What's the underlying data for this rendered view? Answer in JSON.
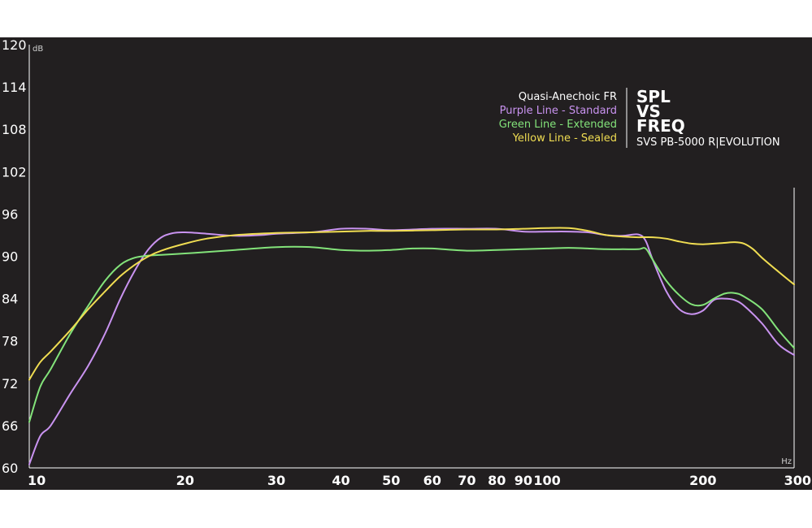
{
  "chart_data": {
    "type": "line",
    "y_unit": "dB",
    "x_unit": "Hz",
    "x_scale": "log",
    "xlim": [
      10,
      300
    ],
    "ylim": [
      60,
      120
    ],
    "y_ticks": [
      "120",
      "114",
      "108",
      "102",
      "96",
      "90",
      "84",
      "78",
      "72",
      "66",
      "60"
    ],
    "x_ticks": [
      {
        "value": 10,
        "label": "10"
      },
      {
        "value": 20,
        "label": "20"
      },
      {
        "value": 30,
        "label": "30"
      },
      {
        "value": 40,
        "label": "40"
      },
      {
        "value": 50,
        "label": "50"
      },
      {
        "value": 60,
        "label": "60"
      },
      {
        "value": 70,
        "label": "70"
      },
      {
        "value": 80,
        "label": "80"
      },
      {
        "value": 90,
        "label": "90"
      },
      {
        "value": 100,
        "label": "100"
      },
      {
        "value": 200,
        "label": "200"
      },
      {
        "value": 300,
        "label": "300"
      }
    ],
    "legend": {
      "heading": "Quasi-Anechoic FR",
      "entries": [
        "Purple Line - Standard",
        "Green Line - Extended",
        "Yellow Line - Sealed"
      ]
    },
    "title_lines": [
      "SPL",
      "VS",
      "FREQ"
    ],
    "subtitle": "SVS PB-5000 R|EVOLUTION",
    "series": [
      {
        "name": "Purple Line - Standard",
        "color": "#c993f0",
        "x": [
          10,
          10.5,
          11,
          12,
          13,
          14,
          15,
          16,
          17,
          18,
          19,
          20,
          22,
          25,
          28,
          30,
          35,
          40,
          45,
          50,
          60,
          70,
          80,
          90,
          100,
          110,
          120,
          130,
          140,
          150,
          155,
          160,
          170,
          180,
          190,
          200,
          210,
          220,
          230,
          240,
          260,
          280,
          300
        ],
        "y": [
          60.5,
          64.5,
          66,
          70.5,
          74.5,
          79,
          84,
          88,
          91,
          92.7,
          93.3,
          93.4,
          93.2,
          92.9,
          93,
          93.2,
          93.4,
          93.9,
          93.9,
          93.7,
          93.9,
          93.9,
          93.9,
          93.5,
          93.5,
          93.5,
          93.4,
          93,
          92.9,
          93.1,
          92.2,
          89.5,
          85,
          82.5,
          81.8,
          82.3,
          83.8,
          84,
          83.8,
          83,
          80.5,
          77.5,
          76
        ]
      },
      {
        "name": "Green Line - Extended",
        "color": "#83e37a",
        "x": [
          10,
          10.5,
          11,
          12,
          13,
          14,
          15,
          16,
          17,
          18,
          20,
          22,
          25,
          30,
          35,
          40,
          45,
          50,
          55,
          60,
          70,
          80,
          90,
          100,
          110,
          120,
          130,
          140,
          150,
          155,
          160,
          170,
          180,
          190,
          200,
          210,
          220,
          230,
          240,
          260,
          280,
          300
        ],
        "y": [
          66.5,
          71.5,
          74,
          79,
          83,
          86.5,
          88.8,
          89.8,
          90.1,
          90.2,
          90.4,
          90.6,
          90.9,
          91.3,
          91.3,
          90.9,
          90.8,
          90.9,
          91.1,
          91.1,
          90.8,
          90.9,
          91,
          91.1,
          91.2,
          91.1,
          91,
          91,
          91,
          91.1,
          89.5,
          86.5,
          84.5,
          83.2,
          83.1,
          84,
          84.7,
          84.8,
          84.3,
          82.5,
          79.5,
          77
        ]
      },
      {
        "name": "Yellow Line - Sealed",
        "color": "#f0dd52",
        "x": [
          10,
          10.5,
          11,
          12,
          13,
          14,
          15,
          16,
          17,
          18,
          20,
          22,
          25,
          30,
          35,
          40,
          45,
          50,
          60,
          70,
          80,
          90,
          100,
          110,
          120,
          130,
          140,
          150,
          160,
          170,
          180,
          190,
          200,
          210,
          220,
          230,
          240,
          250,
          260,
          280,
          300
        ],
        "y": [
          72.5,
          75,
          76.5,
          79.5,
          82.5,
          85,
          87.2,
          88.8,
          90,
          90.8,
          91.8,
          92.5,
          93,
          93.3,
          93.4,
          93.5,
          93.6,
          93.6,
          93.7,
          93.8,
          93.8,
          93.9,
          94,
          94,
          93.6,
          93,
          92.8,
          92.7,
          92.7,
          92.5,
          92.1,
          91.8,
          91.7,
          91.8,
          91.9,
          92,
          91.8,
          91,
          89.8,
          87.8,
          86
        ]
      }
    ]
  }
}
